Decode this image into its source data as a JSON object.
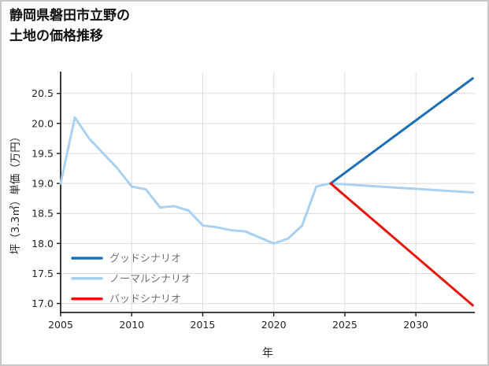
{
  "window": {
    "background": "#ffffff",
    "border_color": "#c8c8c8"
  },
  "title": {
    "line1": "静岡県磐田市立野の",
    "line2": "土地の価格推移"
  },
  "chart_data": {
    "type": "line",
    "title": "静岡県磐田市立野の土地の価格推移",
    "xlabel": "年",
    "ylabel": "坪（3.3㎡）単価（万円）",
    "xlim": [
      2005,
      2034.15
    ],
    "ylim": [
      16.85,
      20.85
    ],
    "xticks": [
      2005,
      2010,
      2015,
      2020,
      2025,
      2030
    ],
    "xtick_labels": [
      "2005",
      "2010",
      "2015",
      "2020",
      "2025",
      "2030"
    ],
    "yticks": [
      17.0,
      17.5,
      18.0,
      18.5,
      19.0,
      19.5,
      20.0,
      20.5
    ],
    "ytick_labels": [
      "17.0",
      "17.5",
      "18.0",
      "18.5",
      "19.0",
      "19.5",
      "20.0",
      "20.5"
    ],
    "grid": true,
    "grid_color": "#dcdcdc",
    "axis_color": "#262626",
    "legend_position": "lower-left-inside",
    "legend_text_color": "#737373",
    "series": [
      {
        "name": "グッドシナリオ",
        "color": "#1f6fb4",
        "width": 3,
        "x": [
          2024,
          2034
        ],
        "y": [
          19.0,
          20.75
        ]
      },
      {
        "name": "ノーマルシナリオ",
        "color": "#a9d1f2",
        "width": 3,
        "x": [
          2005,
          2006,
          2007,
          2008,
          2009,
          2010,
          2011,
          2012,
          2013,
          2014,
          2015,
          2016,
          2017,
          2018,
          2019,
          2020,
          2021,
          2022,
          2023,
          2024,
          2034
        ],
        "y": [
          19.0,
          20.1,
          19.75,
          19.5,
          19.25,
          18.95,
          18.9,
          18.6,
          18.62,
          18.55,
          18.3,
          18.27,
          18.22,
          18.2,
          18.1,
          18.0,
          18.08,
          18.3,
          18.95,
          19.0,
          18.85
        ]
      },
      {
        "name": "バッドシナリオ",
        "color": "#e8150d",
        "width": 3,
        "x": [
          2024,
          2034
        ],
        "y": [
          19.0,
          16.97
        ]
      }
    ]
  }
}
